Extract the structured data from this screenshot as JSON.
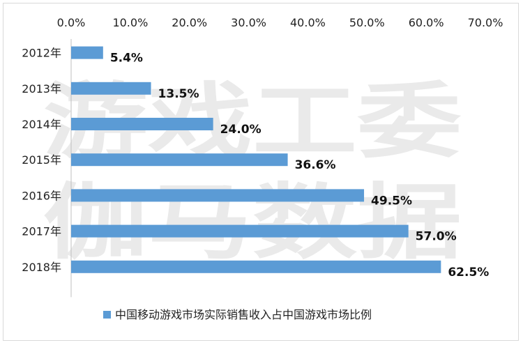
{
  "chart_data": {
    "type": "bar",
    "orientation": "horizontal",
    "categories": [
      "2012年",
      "2013年",
      "2014年",
      "2015年",
      "2016年",
      "2017年",
      "2018年"
    ],
    "series": [
      {
        "name": "中国移动游戏市场实际销售收入占中国游戏市场比例",
        "values": [
          5.4,
          13.5,
          24.0,
          36.6,
          49.5,
          57.0,
          62.5
        ],
        "labels": [
          "5.4%",
          "13.5%",
          "24.0%",
          "36.6%",
          "49.5%",
          "57.0%",
          "62.5%"
        ]
      }
    ],
    "xlim": [
      0,
      70
    ],
    "x_ticks": [
      "0.0%",
      "10.0%",
      "20.0%",
      "30.0%",
      "40.0%",
      "50.0%",
      "60.0%",
      "70.0%"
    ],
    "x_axis_position": "top",
    "grid": false,
    "legend_position": "bottom",
    "bar_color": "#5b9bd5",
    "watermark": [
      "游戏工委",
      "伽马数据"
    ]
  }
}
